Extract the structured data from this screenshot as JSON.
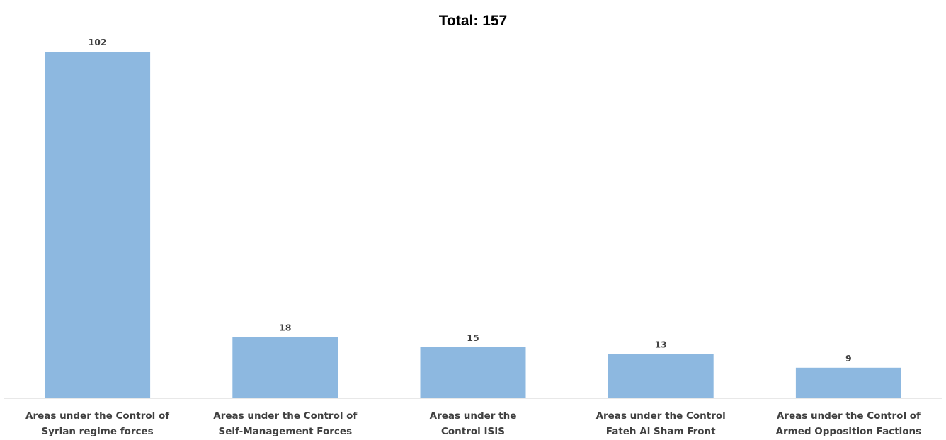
{
  "chart_data": {
    "type": "bar",
    "title": "Total: 157",
    "categories": [
      [
        "Areas under the Control of",
        "Syrian regime forces"
      ],
      [
        "Areas under the Control of",
        "Self-Management Forces"
      ],
      [
        "Areas under the",
        "Control ISIS"
      ],
      [
        "Areas under the Control",
        "Fateh Al Sham Front"
      ],
      [
        "Areas under the Control of",
        "Armed Opposition Factions"
      ]
    ],
    "values": [
      102,
      18,
      15,
      13,
      9
    ],
    "bar_color": "#8db8e0",
    "ylim": [
      0,
      102
    ],
    "grid": false,
    "legend": "none"
  }
}
